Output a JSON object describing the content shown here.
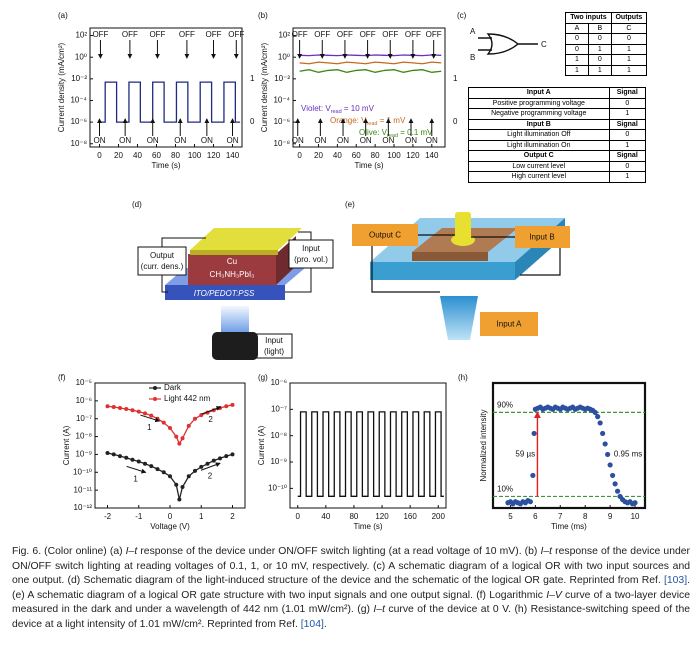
{
  "chart_data": [
    {
      "type": "line",
      "label": "(a)",
      "ylabel": "Current density (mA/cm²)",
      "xlabel": "Time (s)",
      "log_y": true,
      "xlim": [
        -10,
        150
      ],
      "xticks": [
        0,
        20,
        40,
        60,
        80,
        100,
        120,
        140
      ],
      "ylim": [
        5e-09,
        500
      ],
      "yticks": [
        {
          "value": 100,
          "label": "10²"
        },
        {
          "value": 1,
          "label": "10⁰"
        },
        {
          "value": 0.01,
          "label": "10⁻²"
        },
        {
          "value": 0.0001,
          "label": "10⁻⁴"
        },
        {
          "value": 1e-06,
          "label": "10⁻⁶"
        },
        {
          "value": 1e-08,
          "label": "10⁻⁸"
        }
      ],
      "x": [
        0,
        6,
        6,
        18,
        18,
        31,
        31,
        43,
        43,
        56,
        56,
        68,
        68,
        81,
        81,
        93,
        93,
        106,
        106,
        118,
        118,
        131,
        131,
        143,
        143,
        148
      ],
      "series": [
        {
          "color": "#1f2a80",
          "values": [
            1e-06,
            1e-06,
            0.005,
            0.005,
            1e-06,
            1e-06,
            0.005,
            0.005,
            1e-06,
            1e-06,
            0.005,
            0.005,
            1e-06,
            1e-06,
            0.005,
            0.005,
            1e-06,
            1e-06,
            0.005,
            0.005,
            1e-06,
            1e-06,
            0.005,
            0.005,
            1e-06,
            1e-06
          ]
        }
      ],
      "off_arrows": {
        "text": "OFF",
        "x": [
          1,
          32,
          61,
          92,
          120,
          144
        ]
      },
      "on_arrows": {
        "text": "ON",
        "x": [
          0,
          27,
          56,
          85,
          113,
          140
        ]
      },
      "right_labels": [
        {
          "text": "1",
          "y": 0.01
        },
        {
          "text": "0",
          "y": 1e-06
        }
      ]
    },
    {
      "type": "line",
      "label": "(b)",
      "ylabel": "Current density (mA/cm²)",
      "xlabel": "Time (s)",
      "log_y": true,
      "xlim": [
        -7,
        154
      ],
      "xticks": [
        0,
        20,
        40,
        60,
        80,
        100,
        120,
        140
      ],
      "ylim": [
        5e-09,
        500
      ],
      "yticks": [
        {
          "value": 100,
          "label": "10²"
        },
        {
          "value": 1,
          "label": "10⁰"
        },
        {
          "value": 0.01,
          "label": "10⁻²"
        },
        {
          "value": 0.0001,
          "label": "10⁻⁴"
        },
        {
          "value": 1e-06,
          "label": "10⁻⁶"
        },
        {
          "value": 1e-08,
          "label": "10⁻⁸"
        }
      ],
      "x": [
        0,
        10,
        20,
        30,
        40,
        50,
        60,
        70,
        80,
        90,
        100,
        110,
        120,
        130,
        140,
        150
      ],
      "series": [
        {
          "name": [
            "Violet: V",
            "read",
            " = 10 mV"
          ],
          "color": "#6a2fc0",
          "values": [
            1.5,
            1.4,
            1.6,
            1.5,
            1.4,
            1.6,
            1.5,
            1.4,
            1.6,
            1.5,
            1.4,
            1.6,
            1.5,
            1.4,
            1.6,
            1.5
          ]
        },
        {
          "name": [
            "Orange: V",
            "read",
            " = 1 mV"
          ],
          "color": "#c8681e",
          "values": [
            0.3,
            0.25,
            0.35,
            0.3,
            0.25,
            0.35,
            0.3,
            0.25,
            0.35,
            0.3,
            0.25,
            0.35,
            0.3,
            0.25,
            0.35,
            0.3
          ]
        },
        {
          "name": [
            "Olive: V",
            "read",
            " = 0.1 mV"
          ],
          "color": "#3a8a10",
          "values": [
            0.05,
            0.07,
            0.04,
            0.06,
            0.07,
            0.04,
            0.06,
            0.07,
            0.04,
            0.06,
            0.07,
            0.04,
            0.06,
            0.07,
            0.04,
            0.05
          ]
        }
      ],
      "off_arrows": {
        "text": "OFF",
        "x": [
          0,
          24,
          48,
          72,
          96,
          120,
          142
        ]
      },
      "on_arrows": {
        "text": "ON",
        "x": [
          -2,
          22,
          46,
          70,
          94,
          118,
          140
        ]
      },
      "right_labels": [
        {
          "text": "1",
          "y": 0.01
        },
        {
          "text": "0",
          "y": 1e-06
        }
      ]
    },
    {
      "type": "line",
      "label": "(f)",
      "ylabel": "Current (A)",
      "xlabel": "Voltage (V)",
      "log_y": true,
      "markers": true,
      "xlim": [
        -2.4,
        2.4
      ],
      "xticks": [
        -2,
        -1,
        0,
        1,
        2
      ],
      "ylim": [
        1e-12,
        1e-05
      ],
      "yticks": [
        {
          "value": 1e-05,
          "label": "10⁻⁵"
        },
        {
          "value": 1e-06,
          "label": "10⁻⁶"
        },
        {
          "value": 1e-07,
          "label": "10⁻⁷"
        },
        {
          "value": 1e-08,
          "label": "10⁻⁸"
        },
        {
          "value": 1e-09,
          "label": "10⁻⁹"
        },
        {
          "value": 1e-10,
          "label": "10⁻¹⁰"
        },
        {
          "value": 1e-11,
          "label": "10⁻¹¹"
        },
        {
          "value": 1e-12,
          "label": "10⁻¹²"
        }
      ],
      "x": [
        -2,
        -1.8,
        -1.6,
        -1.4,
        -1.2,
        -1,
        -0.8,
        -0.6,
        -0.4,
        -0.2,
        0,
        0.2,
        0.3,
        0.4,
        0.6,
        0.8,
        1,
        1.2,
        1.4,
        1.6,
        1.8,
        2
      ],
      "series": [
        {
          "name": "Dark",
          "color": "#222222",
          "values": [
            1.2e-09,
            1e-09,
            8e-10,
            6.5e-10,
            5e-10,
            4e-10,
            3e-10,
            2.2e-10,
            1.5e-10,
            1e-10,
            6e-11,
            2e-11,
            3e-12,
            1.5e-11,
            6e-11,
            1.2e-10,
            2e-10,
            3e-10,
            4.5e-10,
            6e-10,
            8e-10,
            1e-09
          ]
        },
        {
          "name": "Light 442 nm",
          "color": "#e03030",
          "values": [
            5e-07,
            4.5e-07,
            4e-07,
            3.5e-07,
            3e-07,
            2.5e-07,
            2e-07,
            1.5e-07,
            1e-07,
            6e-08,
            3e-08,
            1e-08,
            4e-09,
            8e-09,
            4e-08,
            1e-07,
            1.6e-07,
            2.2e-07,
            3e-07,
            4e-07,
            5e-07,
            6e-07
          ]
        }
      ],
      "annotations": [
        {
          "text": "1",
          "x": -0.66,
          "y": 3e-08
        },
        {
          "text": "2",
          "x": 1.3,
          "y": 8.5e-08
        },
        {
          "text": "1",
          "x": -1.1,
          "y": 4e-11
        },
        {
          "text": "2",
          "x": 1.28,
          "y": 6e-11
        }
      ]
    },
    {
      "type": "line",
      "label": "(g)",
      "ylabel": "Current (A)",
      "xlabel": "Time (s)",
      "log_y": true,
      "xlim": [
        -11,
        211
      ],
      "xticks": [
        0,
        40,
        80,
        120,
        160,
        200
      ],
      "ylim": [
        1.8e-11,
        1e-06
      ],
      "yticks": [
        {
          "value": 1e-06,
          "label": "10⁻⁶"
        },
        {
          "value": 1e-07,
          "label": "10⁻⁷"
        },
        {
          "value": 1e-08,
          "label": "10⁻⁸"
        },
        {
          "value": 1e-09,
          "label": "10⁻⁹"
        },
        {
          "value": 1e-10,
          "label": "10⁻¹⁰"
        }
      ],
      "x": [
        0,
        4,
        4,
        12,
        12,
        20,
        20,
        28,
        28,
        36,
        36,
        44,
        44,
        52,
        52,
        60,
        60,
        68,
        68,
        76,
        76,
        84,
        84,
        92,
        92,
        100,
        100,
        108,
        108,
        116,
        116,
        124,
        124,
        132,
        132,
        140,
        140,
        148,
        148,
        156,
        156,
        164,
        164,
        172,
        172,
        180,
        180,
        188,
        188,
        196,
        196,
        204,
        204,
        208
      ],
      "series": [
        {
          "color": "#111111",
          "values": [
            5e-11,
            5e-11,
            8e-08,
            8e-08,
            5e-11,
            5e-11,
            8e-08,
            8e-08,
            5e-11,
            5e-11,
            8e-08,
            8e-08,
            5e-11,
            5e-11,
            8e-08,
            8e-08,
            5e-11,
            5e-11,
            8e-08,
            8e-08,
            5e-11,
            5e-11,
            8e-08,
            8e-08,
            5e-11,
            5e-11,
            8e-08,
            8e-08,
            5e-11,
            5e-11,
            8e-08,
            8e-08,
            5e-11,
            5e-11,
            8e-08,
            8e-08,
            5e-11,
            5e-11,
            8e-08,
            8e-08,
            5e-11,
            5e-11,
            8e-08,
            8e-08,
            5e-11,
            5e-11,
            8e-08,
            8e-08,
            5e-11,
            5e-11,
            8e-08,
            8e-08,
            5e-11,
            5e-11
          ]
        }
      ]
    },
    {
      "type": "scatter",
      "label": "(h)",
      "ylabel": "Normalized intensity",
      "xlabel": "Time (ms)",
      "xlim": [
        4.3,
        10.4
      ],
      "xticks": [
        5,
        6,
        7,
        8,
        9,
        10
      ],
      "ylim": [
        -0.01,
        1.18
      ],
      "x": [
        4.9,
        5.0,
        5.1,
        5.2,
        5.3,
        5.4,
        5.5,
        5.6,
        5.7,
        5.8,
        5.9,
        5.95,
        6.0,
        6.1,
        6.2,
        6.3,
        6.4,
        6.5,
        6.6,
        6.7,
        6.8,
        6.9,
        7.0,
        7.1,
        7.2,
        7.3,
        7.4,
        7.5,
        7.6,
        7.7,
        7.8,
        7.9,
        8.0,
        8.1,
        8.2,
        8.3,
        8.4,
        8.5,
        8.6,
        8.7,
        8.8,
        8.9,
        9.0,
        9.1,
        9.2,
        9.3,
        9.4,
        9.5,
        9.6,
        9.7,
        9.8,
        9.9,
        10.0
      ],
      "series": [
        {
          "color": "#2d4fa0",
          "values": [
            0.04,
            0.05,
            0.03,
            0.05,
            0.04,
            0.03,
            0.05,
            0.04,
            0.06,
            0.05,
            0.3,
            0.7,
            0.93,
            0.94,
            0.95,
            0.93,
            0.94,
            0.95,
            0.94,
            0.93,
            0.95,
            0.94,
            0.93,
            0.95,
            0.94,
            0.93,
            0.94,
            0.95,
            0.93,
            0.94,
            0.95,
            0.94,
            0.93,
            0.94,
            0.93,
            0.92,
            0.9,
            0.86,
            0.8,
            0.7,
            0.6,
            0.5,
            0.4,
            0.3,
            0.22,
            0.15,
            0.1,
            0.07,
            0.05,
            0.04,
            0.05,
            0.03,
            0.04
          ]
        }
      ],
      "ref_lines": [
        {
          "value": 0.9,
          "label": "90%"
        },
        {
          "value": 0.1,
          "label": "10%"
        }
      ],
      "annotations": [
        {
          "text": "59 µs",
          "x": 5.2,
          "y": 0.5
        },
        {
          "text": "0.95 ms",
          "x": 9.15,
          "y": 0.5
        }
      ]
    }
  ],
  "panel_c": {
    "label": "(c)",
    "gate": [
      "A",
      "B",
      "C"
    ],
    "truth_table": {
      "header": [
        "Two inputs",
        "Outputs"
      ],
      "subheader": [
        "A",
        "B",
        "C"
      ],
      "rows": [
        [
          "0",
          "0",
          "0"
        ],
        [
          "0",
          "1",
          "1"
        ],
        [
          "1",
          "0",
          "1"
        ],
        [
          "1",
          "1",
          "1"
        ]
      ]
    },
    "signal_table": [
      {
        "header": [
          "Input A",
          "Signal"
        ],
        "rows": [
          [
            "Positive programming voltage",
            "0"
          ],
          [
            "Negative programming voltage",
            "1"
          ]
        ]
      },
      {
        "header": [
          "Input B",
          "Signal"
        ],
        "rows": [
          [
            "Light illumination Off",
            "0"
          ],
          [
            "Light illumination On",
            "1"
          ]
        ]
      },
      {
        "header": [
          "Output C",
          "Signal"
        ],
        "rows": [
          [
            "Low current level",
            "0"
          ],
          [
            "High current level",
            "1"
          ]
        ]
      }
    ]
  },
  "panel_d": {
    "label": "(d)",
    "output": [
      "Output",
      "(curr. dens.)"
    ],
    "input": [
      "Input",
      "(pro. vol.)"
    ],
    "layers": [
      "Cu",
      "CH₃NH₃PbI₃",
      "ITO/PEDOT:PSS"
    ],
    "light_input": [
      "Input",
      "(light)"
    ]
  },
  "panel_e": {
    "label": "(e)",
    "output": "Output C",
    "input_b": "Input B",
    "input_a": "Input A"
  },
  "caption": [
    {
      "text": "Fig. 6. (Color online) (a) "
    },
    {
      "text": "I–t",
      "style": "i"
    },
    {
      "text": " response of the device under ON/OFF switch lighting (at a read voltage of 10 mV). (b) "
    },
    {
      "text": "I–t",
      "style": "i"
    },
    {
      "text": " response of the device under ON/OFF switch lighting at reading voltages of 0.1, 1, or 10 mV, respectively. (c) A schematic diagram of a logical OR with two input sources and one output. (d) Schematic diagram of the light-induced structure of the device and the schematic of the logical OR gate. Reprinted from Ref. "
    },
    {
      "text": "[103]",
      "style": "link"
    },
    {
      "text": ". (e) A schematic diagram of a logical OR gate structure with two input signals and one output signal. (f) Logarithmic "
    },
    {
      "text": "I–V",
      "style": "i"
    },
    {
      "text": " curve of a two-layer device measured in the dark and under a wavelength of 442 nm (1.01 mW/cm²). (g) "
    },
    {
      "text": "I–t",
      "style": "i"
    },
    {
      "text": " curve of the device at 0 V. (h) Resistance-switching speed of the device at a light intensity of 1.01 mW/cm². Reprinted from Ref. "
    },
    {
      "text": "[104]",
      "style": "link"
    },
    {
      "text": "."
    }
  ]
}
